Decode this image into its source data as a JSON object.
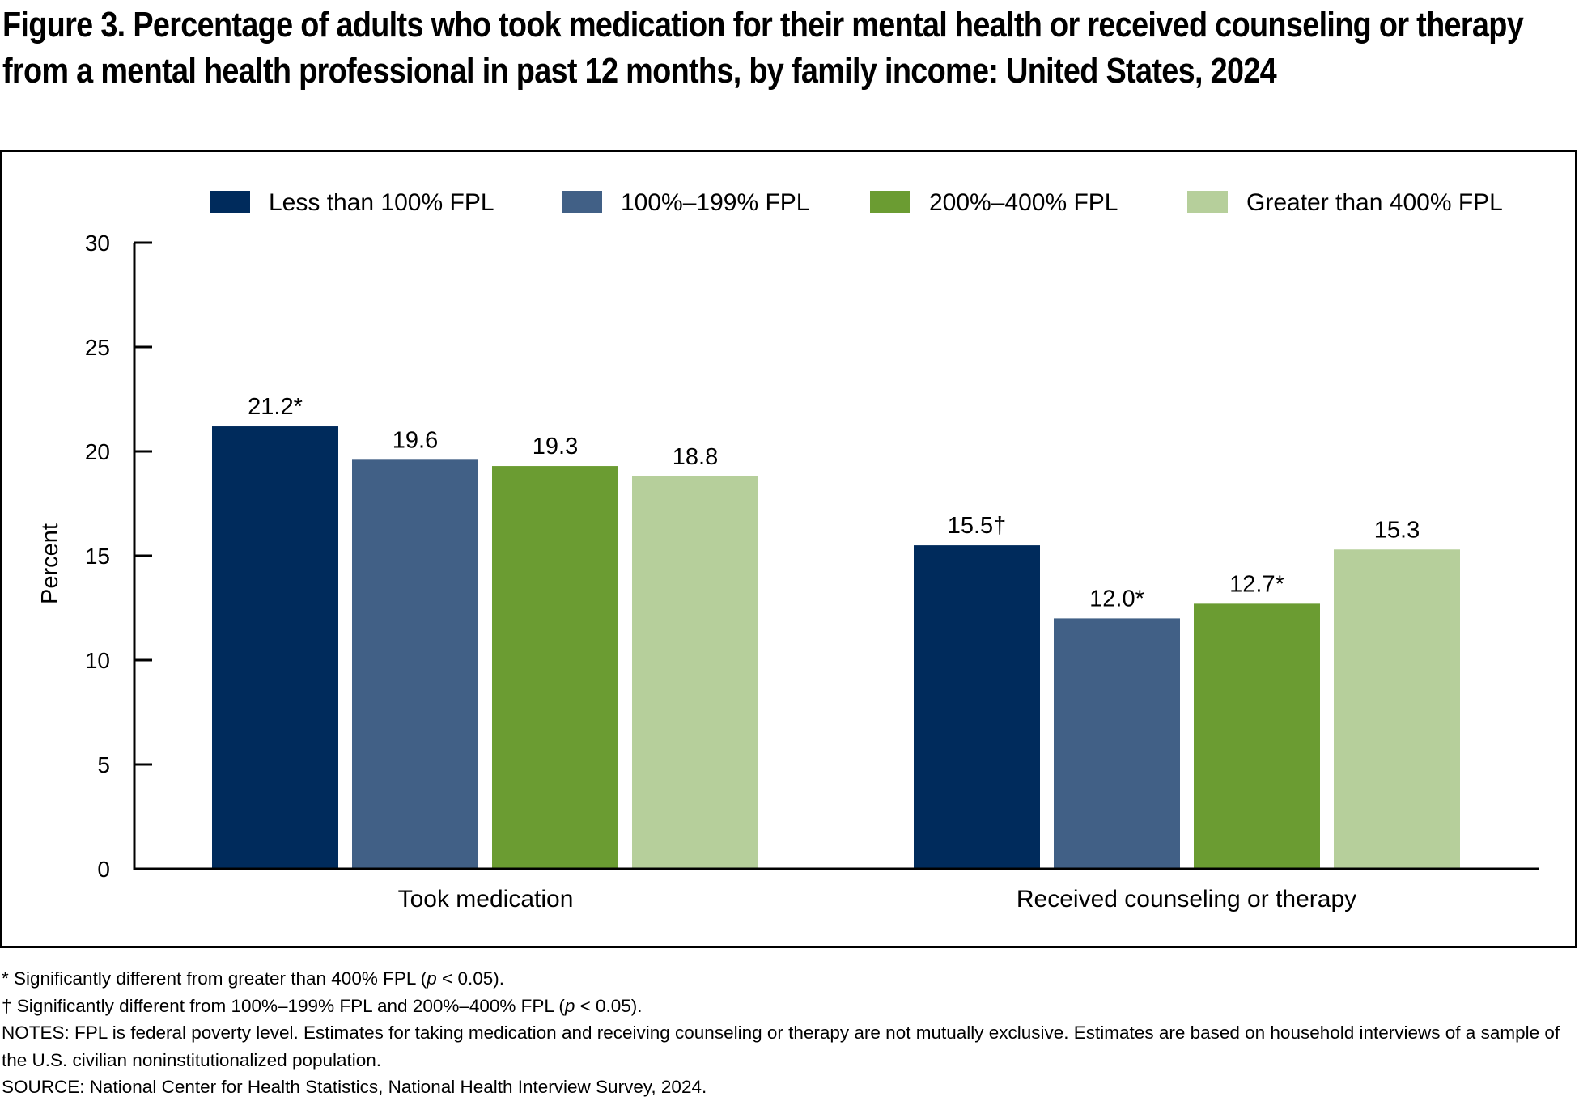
{
  "title": "Figure 3. Percentage of adults who took medication for their mental health or received counseling or therapy from a mental health professional in past 12 months, by family income: United States, 2024",
  "chart_data": {
    "type": "bar",
    "categories": [
      "Took medication",
      "Received counseling or therapy"
    ],
    "series": [
      {
        "name": "Less than 100% FPL",
        "color": "#002b5c",
        "values": [
          21.2,
          15.5
        ],
        "labels": [
          "21.2*",
          "15.5†"
        ]
      },
      {
        "name": "100%–199% FPL",
        "color": "#416086",
        "values": [
          19.6,
          12.0
        ],
        "labels": [
          "19.6",
          "12.0*"
        ]
      },
      {
        "name": "200%–400% FPL",
        "color": "#6b9c32",
        "values": [
          19.3,
          12.7
        ],
        "labels": [
          "19.3",
          "12.7*"
        ]
      },
      {
        "name": "Greater than 400% FPL",
        "color": "#b6cf9b",
        "values": [
          18.8,
          15.3
        ],
        "labels": [
          "18.8",
          "15.3"
        ]
      }
    ],
    "ylabel": "Percent",
    "xlabel": "",
    "ylim": [
      0,
      30
    ],
    "yticks": [
      0,
      5,
      10,
      15,
      20,
      25,
      30
    ],
    "grid": false,
    "legend": "top"
  },
  "footnotes": {
    "significance_1": "* Significantly different from greater than 400% FPL (",
    "significance_1_end": " < 0.05).",
    "significance_2": "† Significantly different from 100%–199% FPL and 200%–400% FPL (",
    "significance_2_end": " < 0.05).",
    "p_symbol": "p",
    "notes": "NOTES: FPL is federal poverty level. Estimates for taking medication and receiving counseling or therapy are not mutually exclusive. Estimates are based on household interviews of a sample of the U.S. civilian noninstitutionalized population.",
    "source": "SOURCE: National Center for Health Statistics, National Health Interview Survey, 2024."
  }
}
